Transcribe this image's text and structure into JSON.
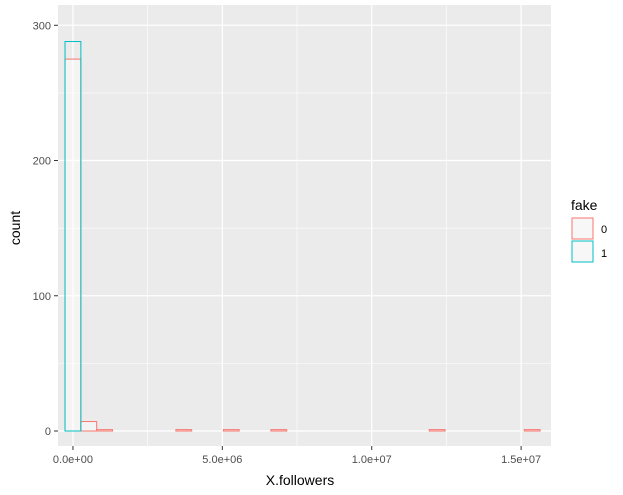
{
  "chart_data": {
    "type": "histogram",
    "xlabel": "X.followers",
    "ylabel": "count",
    "xlim": [
      -500000,
      16000000
    ],
    "ylim": [
      0,
      300
    ],
    "x_ticks": [
      0,
      5000000,
      10000000,
      15000000
    ],
    "x_tick_labels": [
      "0.0e+00",
      "5.0e+06",
      "1.0e+07",
      "1.5e+07"
    ],
    "y_ticks": [
      0,
      100,
      200,
      300
    ],
    "y_tick_labels": [
      "0",
      "100",
      "200",
      "300"
    ],
    "grid": true,
    "bin_width": 530000,
    "bin_centers": [
      0,
      530000,
      1060000,
      1590000,
      2120000,
      2650000,
      3180000,
      3710000,
      4240000,
      4770000,
      5300000,
      5830000,
      6360000,
      6890000,
      7420000,
      7950000,
      8480000,
      9010000,
      9540000,
      10070000,
      10600000,
      11130000,
      11660000,
      12190000,
      12720000,
      13250000,
      13780000,
      14310000,
      14840000,
      15370000
    ],
    "legend": {
      "title": "fake",
      "position": "right"
    },
    "series": [
      {
        "name": "0",
        "color": "#F8766D",
        "values": [
          275,
          7,
          1,
          0,
          0,
          0,
          0,
          1,
          0,
          0,
          1,
          0,
          0,
          1,
          0,
          0,
          0,
          0,
          0,
          0,
          0,
          0,
          0,
          1,
          0,
          0,
          0,
          0,
          0,
          1
        ]
      },
      {
        "name": "1",
        "color": "#00BFC4",
        "values": [
          288,
          0,
          0,
          0,
          0,
          0,
          0,
          0,
          0,
          0,
          0,
          0,
          0,
          0,
          0,
          0,
          0,
          0,
          0,
          0,
          0,
          0,
          0,
          0,
          0,
          0,
          0,
          0,
          0,
          0
        ]
      }
    ],
    "panel_background": "#EBEBEB",
    "grid_color": "#FFFFFF"
  }
}
